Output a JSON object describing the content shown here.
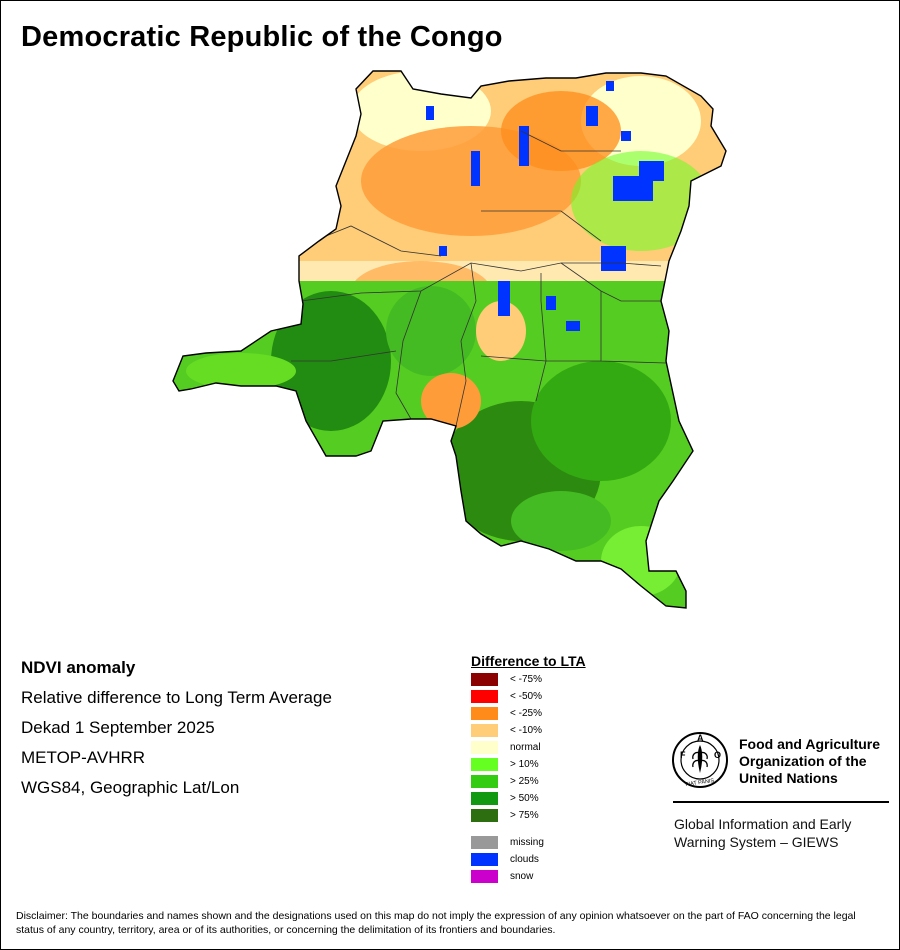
{
  "map": {
    "title": "Democratic Republic of the Congo"
  },
  "info": {
    "title": "NDVI anomaly",
    "subtitle": "Relative difference to Long Term Average",
    "period": "Dekad 1 September 2025",
    "sensor": "METOP-AVHRR",
    "projection": "WGS84, Geographic Lat/Lon"
  },
  "legend": {
    "title": "Difference to LTA",
    "items": [
      {
        "label": "< -75%",
        "color": "#8b0000"
      },
      {
        "label": "< -50%",
        "color": "#ff0000"
      },
      {
        "label": "< -25%",
        "color": "#ff8c1a"
      },
      {
        "label": "< -10%",
        "color": "#ffcc77"
      },
      {
        "label": "normal",
        "color": "#ffffcc"
      },
      {
        "label": "> 10%",
        "color": "#66ff22"
      },
      {
        "label": "> 25%",
        "color": "#33cc11"
      },
      {
        "label": "> 50%",
        "color": "#119911"
      },
      {
        "label": "> 75%",
        "color": "#2d6e10"
      }
    ],
    "extra_items": [
      {
        "label": "missing",
        "color": "#999999"
      },
      {
        "label": "clouds",
        "color": "#0033ff"
      },
      {
        "label": "snow",
        "color": "#cc00cc"
      }
    ]
  },
  "organization": {
    "name": "Food and Agriculture Organization of the United Nations",
    "emblem_motto": "FIAT PANIS",
    "emblem_letters": "FAO",
    "system": "Global Information and Early Warning System – GIEWS"
  },
  "disclaimer": "Disclaimer: The boundaries and names shown and the designations used on this map do not imply the expression of any opinion whatsoever on the part of FAO concerning the legal status of any country, territory, area or of its authorities, or concerning the delimitation of its frontiers and boundaries.",
  "colors": {
    "border": "#000000",
    "internal_borders": "#444444"
  }
}
